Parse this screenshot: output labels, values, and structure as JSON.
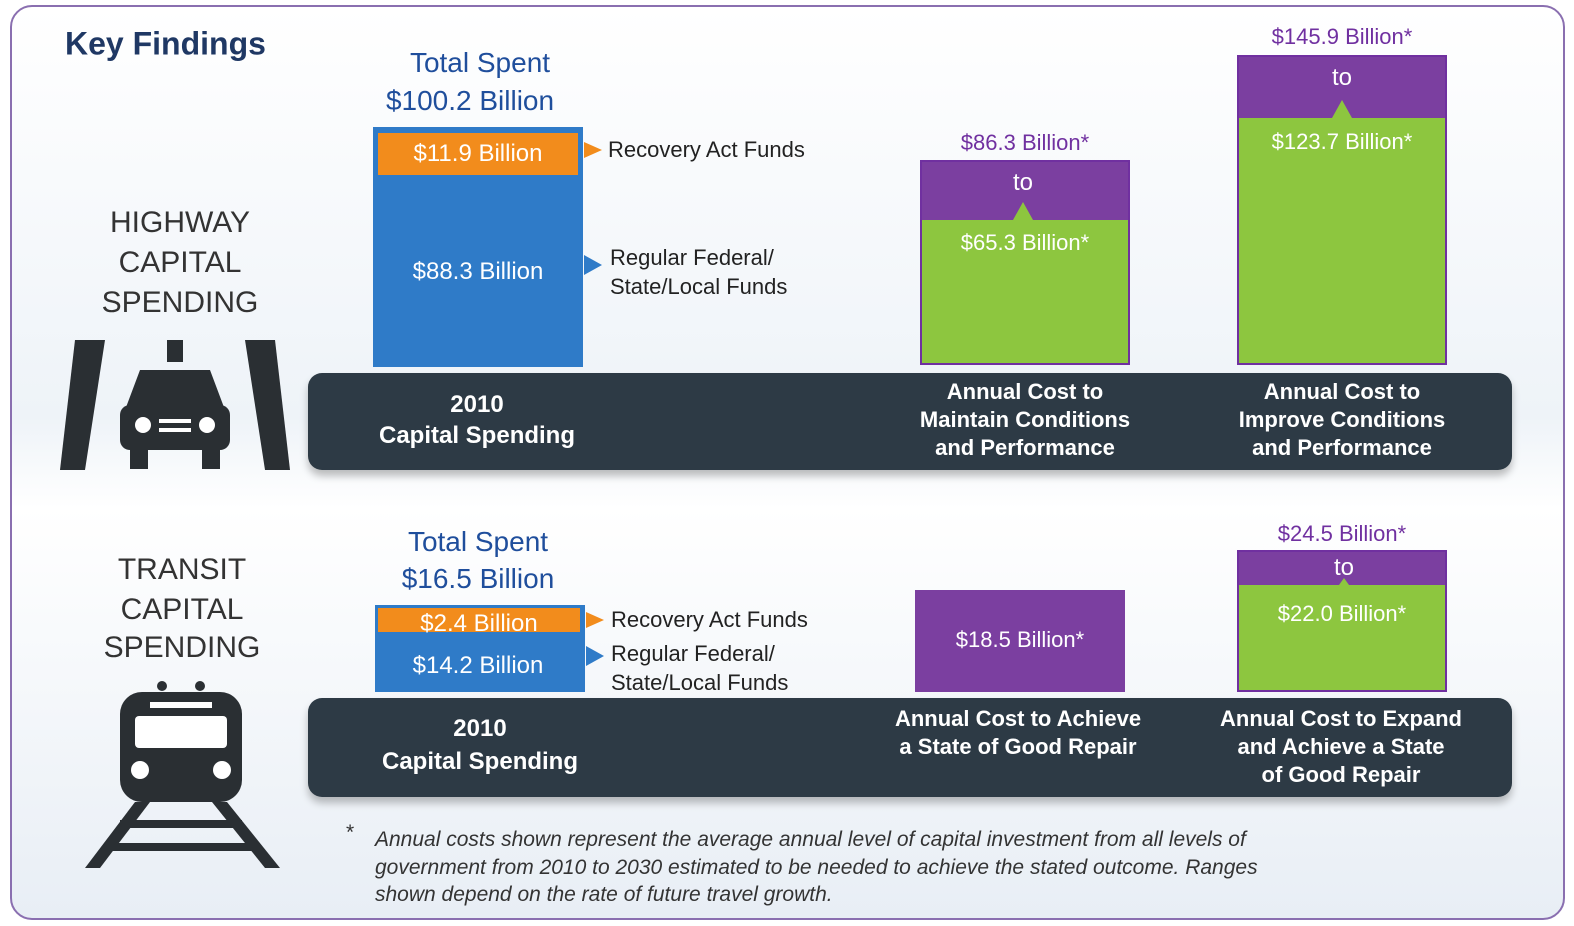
{
  "title": "Key Findings",
  "highway": {
    "label": [
      "HIGHWAY",
      "CAPITAL",
      "SPENDING"
    ],
    "total": [
      "Total Spent",
      "$100.2 Billion"
    ],
    "recovery": "$11.9 Billion",
    "regular": "$88.3 Billion",
    "legend": [
      "Recovery Act Funds",
      "Regular Federal/",
      "State/Local Funds"
    ],
    "spending_caption": [
      "2010",
      "Capital Spending"
    ],
    "maintain": {
      "high": "$86.3 Billion*",
      "to": "to",
      "low": "$65.3 Billion*",
      "caption": [
        "Annual Cost to",
        "Maintain Conditions",
        "and Performance"
      ]
    },
    "improve": {
      "high": "$145.9 Billion*",
      "to": "to",
      "low": "$123.7 Billion*",
      "caption": [
        "Annual Cost to",
        "Improve Conditions",
        "and Performance"
      ]
    }
  },
  "transit": {
    "label": [
      "TRANSIT",
      "CAPITAL",
      "SPENDING"
    ],
    "total": [
      "Total Spent",
      "$16.5 Billion"
    ],
    "recovery": "$2.4 Billion",
    "regular": "$14.2 Billion",
    "legend": [
      "Recovery Act Funds",
      "Regular Federal/",
      "State/Local Funds"
    ],
    "spending_caption": [
      "2010",
      "Capital Spending"
    ],
    "repair": {
      "value": "$18.5 Billion*",
      "caption": [
        "Annual Cost to Achieve",
        "a State of Good Repair"
      ]
    },
    "expand": {
      "high": "$24.5 Billion*",
      "to": "to",
      "low": "$22.0 Billion*",
      "caption": [
        "Annual Cost to Expand",
        "and Achieve a State",
        "of Good Repair"
      ]
    }
  },
  "footnote": {
    "marker": "*",
    "lines": [
      "Annual costs shown represent the average annual level of capital investment from all levels of",
      "government from 2010 to 2030 estimated to be needed to achieve the stated outcome. Ranges",
      "shown depend on the rate of future travel growth."
    ]
  }
}
